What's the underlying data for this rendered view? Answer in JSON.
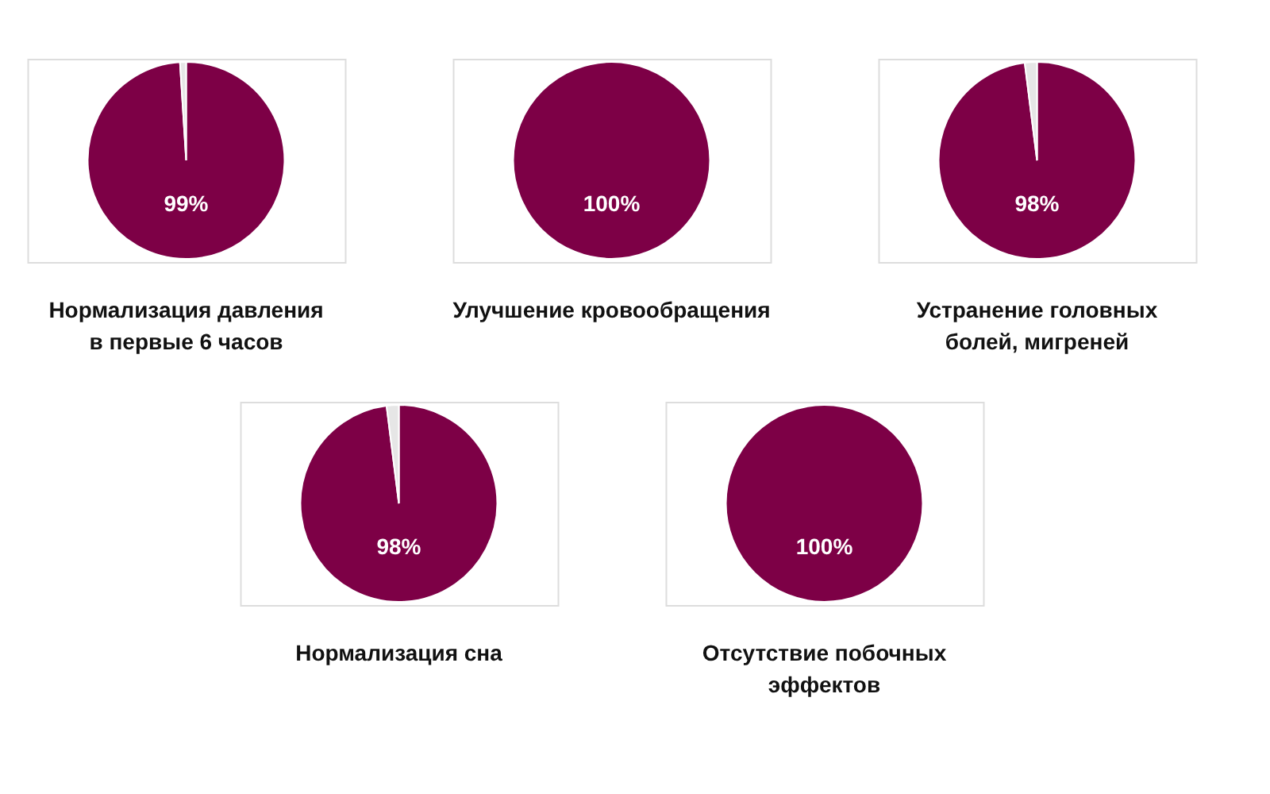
{
  "chart_data": [
    {
      "type": "pie",
      "title": "Нормализация давления\nв первые 6 часов",
      "categories": [
        null,
        null
      ],
      "values": [
        99,
        1
      ],
      "colors": [
        "#7d0046",
        "#e6e6e6"
      ],
      "value_labels": [
        "99%",
        null
      ]
    },
    {
      "type": "pie",
      "title": "Улучшение кровообращения",
      "categories": [
        null
      ],
      "values": [
        100
      ],
      "colors": [
        "#7d0046"
      ],
      "value_labels": [
        "100%"
      ]
    },
    {
      "type": "pie",
      "title": "Устранение головных\nболей, мигреней",
      "categories": [
        null,
        null
      ],
      "values": [
        98,
        2
      ],
      "colors": [
        "#7d0046",
        "#e6e6e6"
      ],
      "value_labels": [
        "98%",
        null
      ]
    },
    {
      "type": "pie",
      "title": "Нормализация сна",
      "categories": [
        null,
        null
      ],
      "values": [
        98,
        2
      ],
      "colors": [
        "#7d0046",
        "#e6e6e6"
      ],
      "value_labels": [
        "98%",
        null
      ]
    },
    {
      "type": "pie",
      "title": "Отсутствие побочных\nэффектов",
      "categories": [
        null
      ],
      "values": [
        100
      ],
      "colors": [
        "#7d0046"
      ],
      "value_labels": [
        "100%"
      ]
    }
  ]
}
